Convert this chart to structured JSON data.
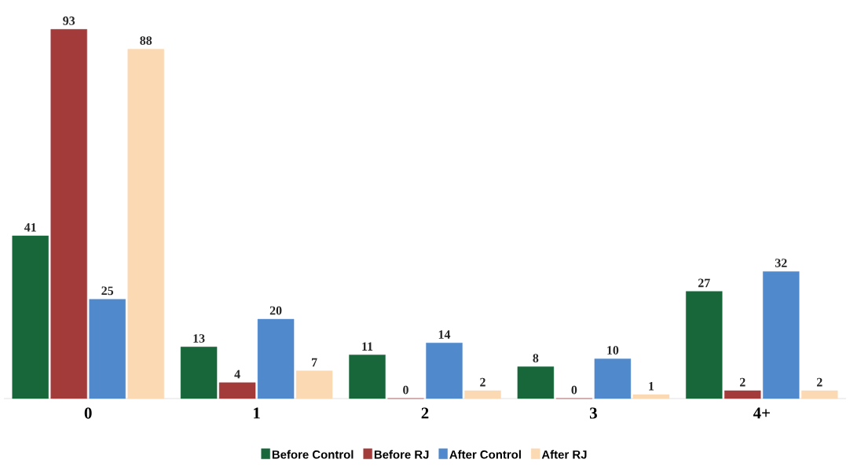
{
  "chart_data": {
    "type": "bar",
    "categories": [
      "0",
      "1",
      "2",
      "3",
      "4+"
    ],
    "series": [
      {
        "name": "Before Control",
        "color": "#17673a",
        "values": [
          41,
          13,
          11,
          8,
          27
        ]
      },
      {
        "name": "Before RJ",
        "color": "#a33b3b",
        "values": [
          93,
          4,
          0,
          0,
          2
        ]
      },
      {
        "name": "After Control",
        "color": "#5089cc",
        "values": [
          25,
          20,
          14,
          10,
          32
        ]
      },
      {
        "name": "After RJ",
        "color": "#fbd9b3",
        "values": [
          88,
          7,
          2,
          1,
          2
        ]
      }
    ],
    "data_labels": true,
    "legend": "bottom"
  }
}
